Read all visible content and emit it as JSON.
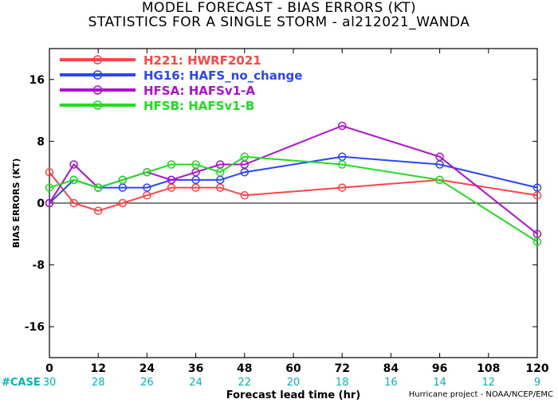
{
  "title_line1": "MODEL FORECAST - BIAS ERRORS (KT)",
  "title_line2": "STATISTICS FOR A SINGLE STORM - al212021_WANDA",
  "credit": "Hurricane project - NOAA/NCEP/EMC",
  "chart_data": {
    "type": "line",
    "xlabel": "Forecast lead time (hr)",
    "ylabel": "BIAS ERRORS (KT)",
    "xlim": [
      0,
      120
    ],
    "ylim": [
      -20,
      20
    ],
    "xticks": [
      0,
      12,
      24,
      36,
      48,
      60,
      72,
      84,
      96,
      108,
      120
    ],
    "yticks": [
      -16,
      -8,
      0,
      8,
      16
    ],
    "zero_line": true,
    "legend_position": "top-left",
    "case_label": "#CASE",
    "case_counts": [
      30,
      28,
      26,
      24,
      22,
      20,
      18,
      16,
      14,
      12,
      9
    ],
    "case_color": "#00b5b5",
    "series": [
      {
        "name": "H221: HWRF2021",
        "color": "#ff4444",
        "x": [
          0,
          6,
          12,
          18,
          24,
          30,
          36,
          42,
          48,
          72,
          96,
          120
        ],
        "y": [
          4,
          0,
          -1,
          0,
          1,
          2,
          2,
          2,
          1,
          2,
          3,
          1
        ]
      },
      {
        "name": "HG16: HAFS_no_change",
        "color": "#2a44ff",
        "x": [
          0,
          6,
          12,
          18,
          24,
          30,
          36,
          42,
          48,
          72,
          96,
          120
        ],
        "y": [
          0,
          3,
          2,
          2,
          2,
          3,
          3,
          3,
          4,
          6,
          5,
          2
        ]
      },
      {
        "name": "HFSA: HAFSv1-A",
        "color": "#b010d0",
        "x": [
          0,
          6,
          12,
          18,
          24,
          30,
          36,
          42,
          48,
          72,
          96,
          120
        ],
        "y": [
          0,
          5,
          2,
          3,
          4,
          3,
          4,
          5,
          5,
          10,
          6,
          -4
        ]
      },
      {
        "name": "HFSB: HAFSv1-B",
        "color": "#20dd20",
        "x": [
          0,
          6,
          12,
          18,
          24,
          30,
          36,
          42,
          48,
          72,
          96,
          120
        ],
        "y": [
          2,
          3,
          2,
          3,
          4,
          5,
          5,
          4,
          6,
          5,
          3,
          -5
        ]
      }
    ]
  }
}
